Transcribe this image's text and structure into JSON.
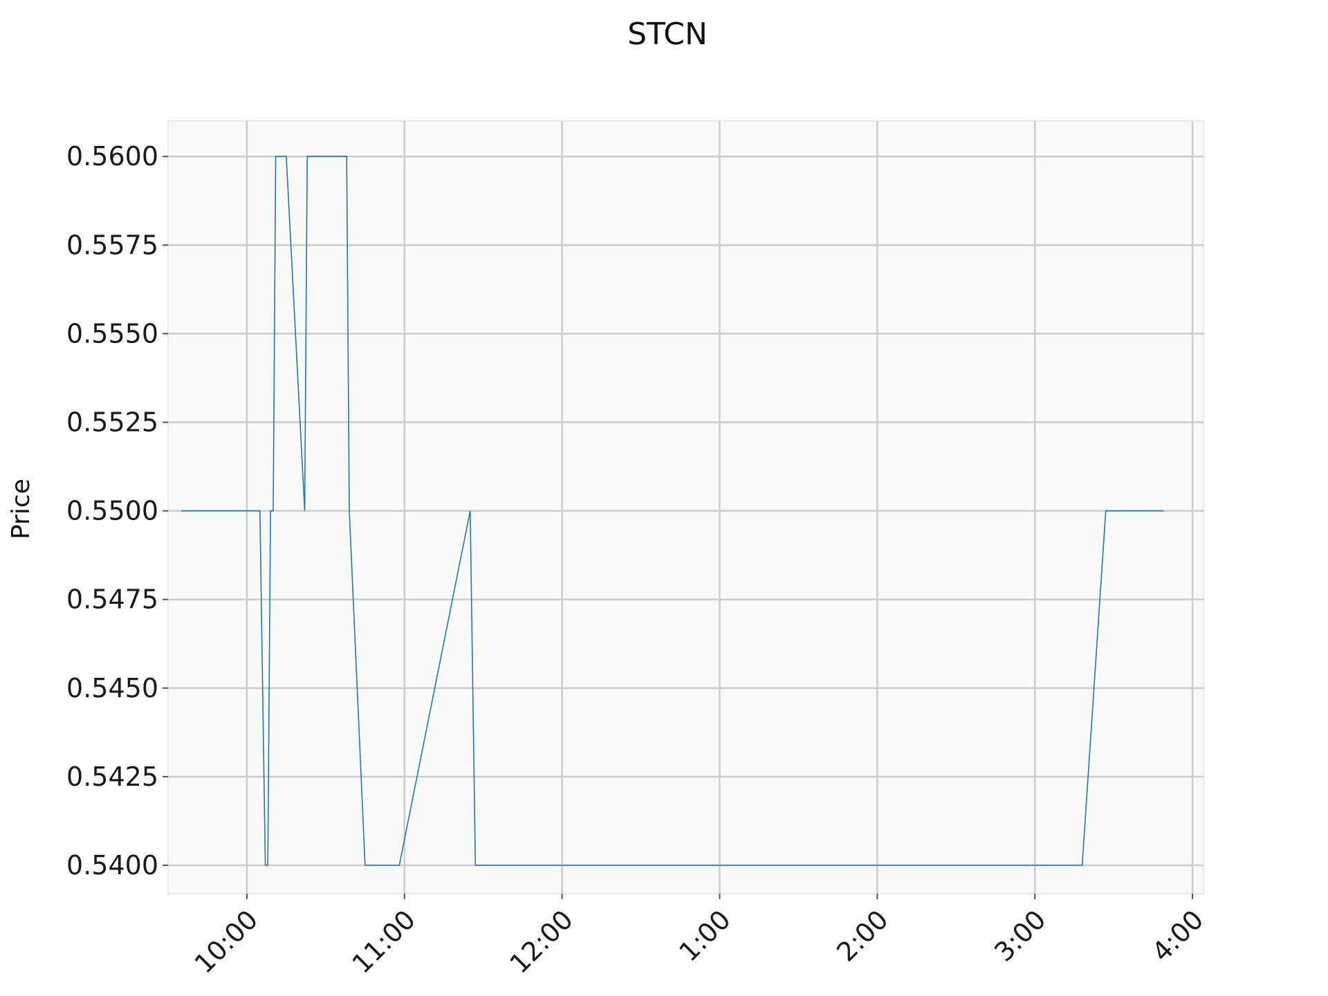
{
  "chart_data": {
    "type": "line",
    "title": "STCN",
    "ylabel": "Price",
    "xlabel": "",
    "x_axis": {
      "min": 9.5,
      "max": 16.07,
      "ticks": [
        {
          "value": 10,
          "label": "10:00"
        },
        {
          "value": 11,
          "label": "11:00"
        },
        {
          "value": 12,
          "label": "12:00"
        },
        {
          "value": 13,
          "label": "1:00"
        },
        {
          "value": 14,
          "label": "2:00"
        },
        {
          "value": 15,
          "label": "3:00"
        },
        {
          "value": 16,
          "label": "4:00"
        }
      ]
    },
    "y_axis": {
      "min": 0.5392,
      "max": 0.561,
      "ticks": [
        {
          "value": 0.54,
          "label": "0.5400"
        },
        {
          "value": 0.5425,
          "label": "0.5425"
        },
        {
          "value": 0.545,
          "label": "0.5450"
        },
        {
          "value": 0.5475,
          "label": "0.5475"
        },
        {
          "value": 0.55,
          "label": "0.5500"
        },
        {
          "value": 0.5525,
          "label": "0.5525"
        },
        {
          "value": 0.555,
          "label": "0.5550"
        },
        {
          "value": 0.5575,
          "label": "0.5575"
        },
        {
          "value": 0.56,
          "label": "0.5600"
        }
      ]
    },
    "grid": true,
    "legend": "none",
    "colors": {
      "line": "#1f77b4",
      "plot_bg": "#f9f9f9",
      "grid": "#cccccc",
      "frame": "#e8e8e8"
    },
    "series": [
      {
        "x": [
          "9:35",
          "10:05",
          "10:07",
          "10:08",
          "10:09",
          "10:10",
          "10:11",
          "10:15",
          "10:22",
          "10:23",
          "10:25",
          "10:38",
          "10:39",
          "10:45",
          "10:52",
          "10:58",
          "11:25",
          "11:27",
          "3:18",
          "3:23",
          "3:45"
        ],
        "x_hours": [
          9.583,
          10.083,
          10.117,
          10.133,
          10.15,
          10.167,
          10.183,
          10.25,
          10.367,
          10.383,
          10.417,
          10.633,
          10.65,
          10.75,
          10.867,
          10.967,
          11.417,
          11.45,
          15.3,
          15.45,
          15.817
        ],
        "values": [
          0.55,
          0.55,
          0.54,
          0.54,
          0.55,
          0.55,
          0.56,
          0.56,
          0.55,
          0.56,
          0.56,
          0.56,
          0.55,
          0.54,
          0.54,
          0.54,
          0.55,
          0.54,
          0.54,
          0.55,
          0.55
        ]
      }
    ]
  }
}
